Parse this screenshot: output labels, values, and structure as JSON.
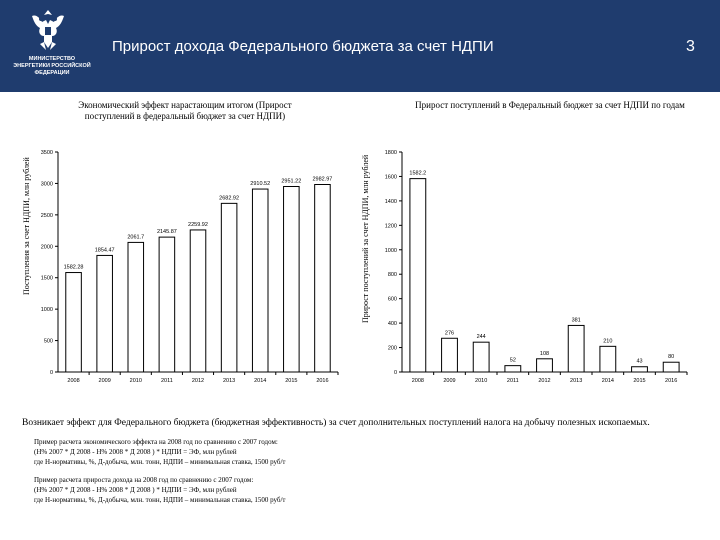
{
  "header": {
    "ministry": "МИНИСТЕРСТВО ЭНЕРГЕТИКИ РОССИЙСКОЙ ФЕДЕРАЦИИ",
    "title": "Прирост дохода Федерального бюджета за счет НДПИ",
    "page_number": "3",
    "background": "#1f3c6e"
  },
  "chart_data": [
    {
      "type": "bar",
      "title": "Экономический эффект нарастающим итогом (Прирост поступлений в федеральный бюджет за счет НДПИ)",
      "ylabel": "Поступления за счет НДПИ, млн рублей",
      "xlabel": "",
      "categories": [
        "2008",
        "2009",
        "2010",
        "2011",
        "2012",
        "2013",
        "2014",
        "2015",
        "2016"
      ],
      "values": [
        1582.28,
        1854.47,
        2061.7,
        2145.87,
        2259.92,
        2682.92,
        2910.52,
        2951.22,
        2982.97
      ],
      "data_labels": [
        "1582.28",
        "1854.47",
        "2061.7",
        "2145.87",
        "2259.92",
        "2682.92",
        "2910.52",
        "2951.22",
        "2982.97"
      ],
      "yticks": [
        "0",
        "500",
        "1000",
        "1500",
        "2000",
        "2500",
        "3000",
        "3500"
      ],
      "ylim": [
        0,
        3500
      ],
      "bar_color": "#ffffff",
      "grid": false
    },
    {
      "type": "bar",
      "title": "Прирост поступлений в Федеральный бюджет за счет НДПИ по годам",
      "ylabel": "Прирост поступлений за счет НДПИ, млн рублей",
      "xlabel": "",
      "categories": [
        "2008",
        "2009",
        "2010",
        "2011",
        "2012",
        "2013",
        "2014",
        "2015",
        "2016"
      ],
      "values": [
        1582.2,
        276,
        244,
        52,
        108,
        381,
        210,
        43,
        80
      ],
      "data_labels": [
        "1582.2",
        "276",
        "244",
        "52",
        "108",
        "381",
        "210",
        "43",
        "80"
      ],
      "yticks": [
        "0",
        "200",
        "400",
        "600",
        "800",
        "1000",
        "1200",
        "1400",
        "1600",
        "1800"
      ],
      "ylim": [
        0,
        1800
      ],
      "bar_color": "#ffffff",
      "grid": false
    }
  ],
  "summary": "Возникает эффект для Федерального бюджета (бюджетная эффективность) за счет дополнительных поступлений налога на добычу полезных ископаемых.",
  "examples": [
    {
      "lines": [
        "Пример расчета экономического эффекта на 2008 год по сравнению с 2007 годом:",
        "(Н% 2007 * Д 2008 - Н% 2008 * Д 2008 ) * НДПИ = ЭФ, млн рублей",
        "где Н-нормативы, %, Д-добыча, млн. тонн, НДПИ – минимальная ставка, 1500 руб/т"
      ]
    },
    {
      "lines": [
        "Пример расчета прироста дохода на 2008 год по сравнению с 2007 годом:",
        "(Н% 2007 * Д 2008 - Н% 2008 * Д 2008 ) * НДПИ = ЭФ, млн рублей",
        "где Н-нормативы, %, Д-добыча, млн. тонн, НДПИ – минимальная ставка, 1500 руб/т"
      ]
    }
  ]
}
